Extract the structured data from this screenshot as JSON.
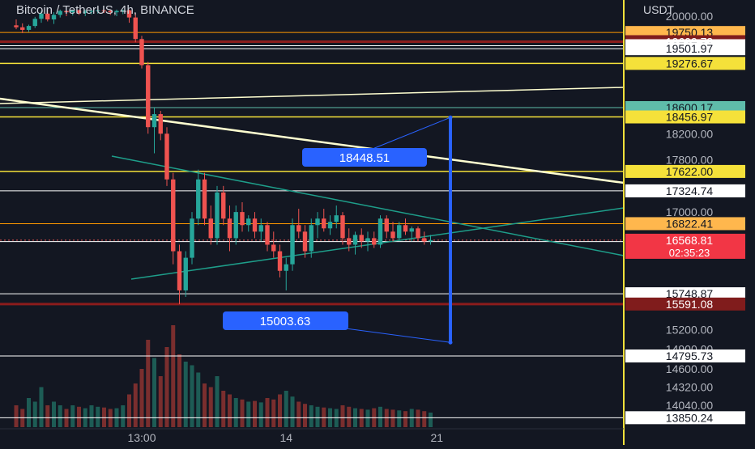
{
  "header": {
    "symbol_title": "Bitcoin / TetherUS, 4h, BINANCE",
    "currency_label": "USDT"
  },
  "colors": {
    "background": "#131722",
    "up_candle": "#26a69a",
    "down_candle": "#ef5350",
    "white_level": "#ffffff",
    "yellow_level": "#f5e13a",
    "orange_level": "#ff9800",
    "dark_red_level": "#8b1c1c",
    "triangle_line": "#1e9e8a",
    "trend_line": "#ffffd0",
    "projection": "#2962ff",
    "cyan_level": "#5fbcaa"
  },
  "chart_data": {
    "type": "candlestick",
    "instrument": "Bitcoin / TetherUS, 4h, BINANCE",
    "y_unit": "USDT",
    "ylim": [
      13850,
      20100
    ],
    "grid": false,
    "y_ticks": [
      {
        "value": 20000.0,
        "label": "20000.00"
      },
      {
        "value": 18200.0,
        "label": "18200.00"
      },
      {
        "value": 17800.0,
        "label": "17800.00"
      },
      {
        "value": 17000.0,
        "label": "17000.00"
      },
      {
        "value": 15200.0,
        "label": "15200.00"
      },
      {
        "value": 14900.0,
        "label": "14900.00"
      },
      {
        "value": 14600.0,
        "label": "14600.00"
      },
      {
        "value": 14320.0,
        "label": "14320.00"
      },
      {
        "value": 14040.0,
        "label": "14040.00"
      }
    ],
    "x_ticks": [
      {
        "index": 20,
        "label": "13:00"
      },
      {
        "index": 43,
        "label": "14"
      },
      {
        "index": 67,
        "label": "21"
      }
    ],
    "price_levels": [
      {
        "value": 19750.13,
        "label": "19750.13",
        "style": "orange"
      },
      {
        "value": 19609.73,
        "label": "19609.73",
        "style": "darkred"
      },
      {
        "value": 19547.91,
        "label": "19547.91",
        "style": "white"
      },
      {
        "value": 19501.97,
        "label": "19501.97",
        "style": "white"
      },
      {
        "value": 19276.67,
        "label": "19276.67",
        "style": "yellow"
      },
      {
        "value": 18600.17,
        "label": "18600.17",
        "style": "cyan"
      },
      {
        "value": 18456.97,
        "label": "18456.97",
        "style": "yellow"
      },
      {
        "value": 17622.0,
        "label": "17622.00",
        "style": "yellow"
      },
      {
        "value": 17324.74,
        "label": "17324.74",
        "style": "white"
      },
      {
        "value": 16822.41,
        "label": "16822.41",
        "style": "orange"
      },
      {
        "value": 16547.51,
        "label": "16547.51",
        "style": "white"
      },
      {
        "value": 15748.87,
        "label": "15748.87",
        "style": "white"
      },
      {
        "value": 15591.08,
        "label": "15591.08",
        "style": "darkred"
      },
      {
        "value": 14795.73,
        "label": "14795.73",
        "style": "white"
      },
      {
        "value": 13850.24,
        "label": "13850.24",
        "style": "white"
      }
    ],
    "current_price": {
      "value": 16568.81,
      "label": "16568.81",
      "countdown": "02:35:23"
    },
    "projections": [
      {
        "value": 18448.51,
        "label": "18448.51"
      },
      {
        "value": 15003.63,
        "label": "15003.63"
      }
    ],
    "candles": [
      {
        "o": 19860,
        "h": 19950,
        "l": 19800,
        "c": 19830
      },
      {
        "o": 19830,
        "h": 19890,
        "l": 19740,
        "c": 19790
      },
      {
        "o": 19790,
        "h": 19870,
        "l": 19760,
        "c": 19850
      },
      {
        "o": 19850,
        "h": 19990,
        "l": 19820,
        "c": 19960
      },
      {
        "o": 19960,
        "h": 20080,
        "l": 19900,
        "c": 20040
      },
      {
        "o": 20040,
        "h": 20100,
        "l": 19920,
        "c": 19950
      },
      {
        "o": 19950,
        "h": 20060,
        "l": 19880,
        "c": 20020
      },
      {
        "o": 20020,
        "h": 20100,
        "l": 19980,
        "c": 20080
      },
      {
        "o": 20080,
        "h": 20100,
        "l": 20000,
        "c": 20060
      },
      {
        "o": 20060,
        "h": 20100,
        "l": 20010,
        "c": 20090
      },
      {
        "o": 20090,
        "h": 20100,
        "l": 20020,
        "c": 20050
      },
      {
        "o": 20050,
        "h": 20100,
        "l": 20000,
        "c": 20070
      },
      {
        "o": 20070,
        "h": 20100,
        "l": 20030,
        "c": 20080
      },
      {
        "o": 20080,
        "h": 20100,
        "l": 20040,
        "c": 20090
      },
      {
        "o": 20090,
        "h": 20100,
        "l": 20050,
        "c": 20080
      },
      {
        "o": 20080,
        "h": 20100,
        "l": 20020,
        "c": 20060
      },
      {
        "o": 20060,
        "h": 20100,
        "l": 20000,
        "c": 20080
      },
      {
        "o": 20080,
        "h": 20100,
        "l": 20030,
        "c": 20090
      },
      {
        "o": 20090,
        "h": 20100,
        "l": 19900,
        "c": 19980
      },
      {
        "o": 19980,
        "h": 20050,
        "l": 19600,
        "c": 19650
      },
      {
        "o": 19650,
        "h": 19700,
        "l": 19200,
        "c": 19250
      },
      {
        "o": 19250,
        "h": 19300,
        "l": 18200,
        "c": 18300
      },
      {
        "o": 18300,
        "h": 18600,
        "l": 17900,
        "c": 18500
      },
      {
        "o": 18500,
        "h": 18550,
        "l": 18100,
        "c": 18200
      },
      {
        "o": 18200,
        "h": 18300,
        "l": 17400,
        "c": 17500
      },
      {
        "o": 17500,
        "h": 17600,
        "l": 16200,
        "c": 16400
      },
      {
        "o": 16400,
        "h": 16500,
        "l": 15590,
        "c": 15800
      },
      {
        "o": 15800,
        "h": 16400,
        "l": 15700,
        "c": 16300
      },
      {
        "o": 16300,
        "h": 17000,
        "l": 16200,
        "c": 16900
      },
      {
        "o": 16900,
        "h": 17650,
        "l": 16800,
        "c": 17500
      },
      {
        "o": 17500,
        "h": 17600,
        "l": 16800,
        "c": 16900
      },
      {
        "o": 16900,
        "h": 17100,
        "l": 16500,
        "c": 16600
      },
      {
        "o": 16600,
        "h": 17400,
        "l": 16500,
        "c": 17300
      },
      {
        "o": 17300,
        "h": 17400,
        "l": 16800,
        "c": 16900
      },
      {
        "o": 16900,
        "h": 17100,
        "l": 16400,
        "c": 16600
      },
      {
        "o": 16600,
        "h": 17100,
        "l": 16500,
        "c": 17000
      },
      {
        "o": 17000,
        "h": 17150,
        "l": 16700,
        "c": 16800
      },
      {
        "o": 16800,
        "h": 16950,
        "l": 16700,
        "c": 16900
      },
      {
        "o": 16900,
        "h": 17000,
        "l": 16600,
        "c": 16700
      },
      {
        "o": 16700,
        "h": 16900,
        "l": 16550,
        "c": 16800
      },
      {
        "o": 16800,
        "h": 16850,
        "l": 16400,
        "c": 16500
      },
      {
        "o": 16500,
        "h": 16700,
        "l": 16300,
        "c": 16400
      },
      {
        "o": 16400,
        "h": 16500,
        "l": 16000,
        "c": 16100
      },
      {
        "o": 16100,
        "h": 16300,
        "l": 15800,
        "c": 16200
      },
      {
        "o": 16200,
        "h": 16900,
        "l": 16100,
        "c": 16800
      },
      {
        "o": 16800,
        "h": 17050,
        "l": 16600,
        "c": 16700
      },
      {
        "o": 16700,
        "h": 16800,
        "l": 16300,
        "c": 16400
      },
      {
        "o": 16400,
        "h": 16900,
        "l": 16300,
        "c": 16800
      },
      {
        "o": 16800,
        "h": 17000,
        "l": 16600,
        "c": 16900
      },
      {
        "o": 16900,
        "h": 17050,
        "l": 16700,
        "c": 16750
      },
      {
        "o": 16750,
        "h": 16950,
        "l": 16650,
        "c": 16850
      },
      {
        "o": 16850,
        "h": 17100,
        "l": 16750,
        "c": 16950
      },
      {
        "o": 16950,
        "h": 17000,
        "l": 16500,
        "c": 16600
      },
      {
        "o": 16600,
        "h": 16750,
        "l": 16400,
        "c": 16500
      },
      {
        "o": 16500,
        "h": 16700,
        "l": 16350,
        "c": 16650
      },
      {
        "o": 16650,
        "h": 16750,
        "l": 16450,
        "c": 16550
      },
      {
        "o": 16550,
        "h": 16700,
        "l": 16400,
        "c": 16600
      },
      {
        "o": 16600,
        "h": 16700,
        "l": 16450,
        "c": 16500
      },
      {
        "o": 16500,
        "h": 16950,
        "l": 16450,
        "c": 16900
      },
      {
        "o": 16900,
        "h": 16950,
        "l": 16600,
        "c": 16700
      },
      {
        "o": 16700,
        "h": 16850,
        "l": 16550,
        "c": 16600
      },
      {
        "o": 16600,
        "h": 16850,
        "l": 16550,
        "c": 16800
      },
      {
        "o": 16800,
        "h": 16900,
        "l": 16650,
        "c": 16700
      },
      {
        "o": 16700,
        "h": 16780,
        "l": 16550,
        "c": 16750
      },
      {
        "o": 16750,
        "h": 16780,
        "l": 16550,
        "c": 16600
      },
      {
        "o": 16600,
        "h": 16700,
        "l": 16500,
        "c": 16550
      },
      {
        "o": 16550,
        "h": 16650,
        "l": 16500,
        "c": 16570
      }
    ],
    "volumes": [
      30,
      25,
      40,
      35,
      55,
      30,
      35,
      30,
      25,
      30,
      28,
      26,
      30,
      28,
      27,
      25,
      26,
      30,
      45,
      60,
      80,
      120,
      95,
      70,
      110,
      140,
      100,
      90,
      85,
      75,
      60,
      55,
      70,
      50,
      45,
      40,
      38,
      35,
      36,
      34,
      40,
      38,
      45,
      50,
      42,
      35,
      32,
      30,
      28,
      27,
      26,
      25,
      30,
      28,
      26,
      25,
      24,
      26,
      28,
      25,
      24,
      23,
      22,
      25,
      24,
      22,
      20
    ]
  }
}
